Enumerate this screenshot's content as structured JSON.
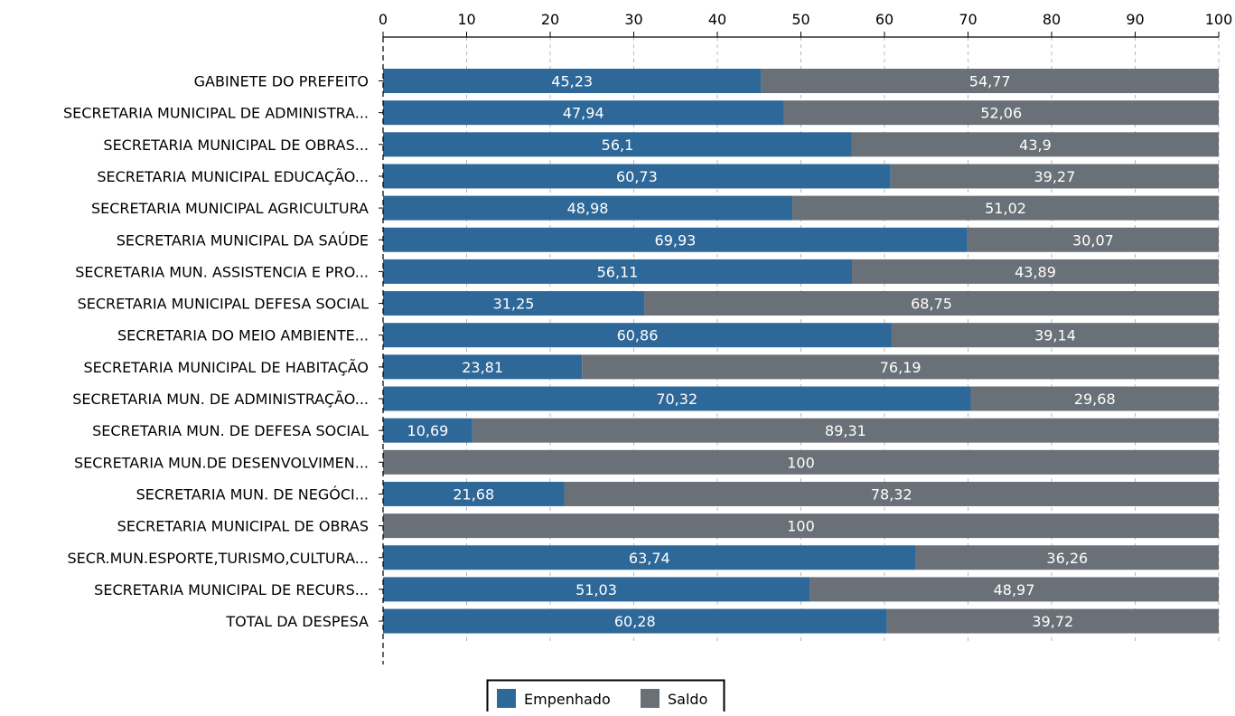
{
  "chart_data": {
    "type": "bar",
    "orientation": "horizontal",
    "stacked": true,
    "title": "",
    "xlabel": "",
    "ylabel": "",
    "xlim": [
      0,
      100
    ],
    "x_ticks": [
      0,
      10,
      20,
      30,
      40,
      50,
      60,
      70,
      80,
      90,
      100
    ],
    "x_axis_position": "top",
    "grid": "vertical dashed",
    "legend_position": "bottom-center",
    "categories": [
      "GABINETE DO PREFEITO",
      "SECRETARIA MUNICIPAL DE ADMINISTRA...",
      "SECRETARIA MUNICIPAL DE OBRAS...",
      "SECRETARIA MUNICIPAL EDUCAÇÃO...",
      "SECRETARIA MUNICIPAL AGRICULTURA",
      "SECRETARIA MUNICIPAL DA SAÚDE",
      "SECRETARIA MUN. ASSISTENCIA E PRO...",
      "SECRETARIA MUNICIPAL DEFESA SOCIAL",
      "SECRETARIA DO MEIO AMBIENTE...",
      "SECRETARIA MUNICIPAL DE HABITAÇÃO",
      "SECRETARIA MUN. DE ADMINISTRAÇÃO...",
      "SECRETARIA MUN. DE DEFESA SOCIAL",
      "SECRETARIA MUN.DE DESENVOLVIMEN...",
      "SECRETARIA MUN. DE NEGÓCI...",
      "SECRETARIA MUNICIPAL DE OBRAS",
      "SECR.MUN.ESPORTE,TURISMO,CULTURA...",
      "SECRETARIA MUNICIPAL DE RECURS...",
      "TOTAL DA DESPESA"
    ],
    "series": [
      {
        "name": "Empenhado",
        "color": "#2e6898",
        "values": [
          45.23,
          47.94,
          56.1,
          60.73,
          48.98,
          69.93,
          56.11,
          31.25,
          60.86,
          23.81,
          70.32,
          10.69,
          0,
          21.68,
          0,
          63.74,
          51.03,
          60.28
        ],
        "labels": [
          "45,23",
          "47,94",
          "56,1",
          "60,73",
          "48,98",
          "69,93",
          "56,11",
          "31,25",
          "60,86",
          "23,81",
          "70,32",
          "10,69",
          "",
          "21,68",
          "",
          "63,74",
          "51,03",
          "60,28"
        ]
      },
      {
        "name": "Saldo",
        "color": "#6a7077",
        "values": [
          54.77,
          52.06,
          43.9,
          39.27,
          51.02,
          30.07,
          43.89,
          68.75,
          39.14,
          76.19,
          29.68,
          89.31,
          100,
          78.32,
          100,
          36.26,
          48.97,
          39.72
        ],
        "labels": [
          "54,77",
          "52,06",
          "43,9",
          "39,27",
          "51,02",
          "30,07",
          "43,89",
          "68,75",
          "39,14",
          "76,19",
          "29,68",
          "89,31",
          "100",
          "78,32",
          "100",
          "36,26",
          "48,97",
          "39,72"
        ]
      }
    ]
  }
}
